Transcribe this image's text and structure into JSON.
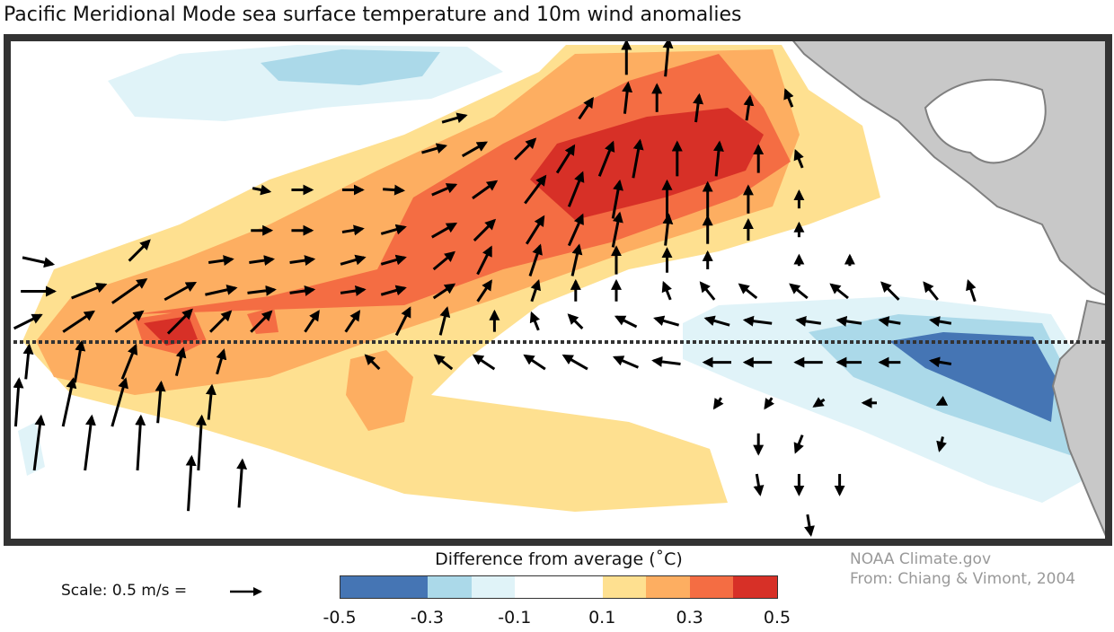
{
  "title": "Pacific Meridional Mode sea surface temperature and 10m wind anomalies",
  "legend": {
    "title": "Difference from average (˚C)",
    "ticks": [
      "-0.5",
      "-0.3",
      "-0.1",
      "0.1",
      "0.3",
      "0.5"
    ],
    "bins": [
      {
        "from": -0.5,
        "to": -0.3,
        "color": "#4575b4"
      },
      {
        "from": -0.3,
        "to": -0.2,
        "color": "#abd9e9"
      },
      {
        "from": -0.2,
        "to": -0.1,
        "color": "#e0f3f8"
      },
      {
        "from": -0.1,
        "to": 0.1,
        "color": "#ffffff"
      },
      {
        "from": 0.1,
        "to": 0.2,
        "color": "#fee090"
      },
      {
        "from": 0.2,
        "to": 0.3,
        "color": "#fdae61"
      },
      {
        "from": 0.3,
        "to": 0.4,
        "color": "#f46d43"
      },
      {
        "from": 0.4,
        "to": 0.5,
        "color": "#d73027"
      }
    ]
  },
  "scale_label": "Scale: 0.5 m/s =",
  "scale_value_ms": 0.5,
  "credit": {
    "line1": "NOAA Climate.gov",
    "line2": "From: Chiang & Vimont, 2004"
  },
  "colors": {
    "land": "#c8c8c8",
    "land_border": "#808080",
    "frame": "#333333"
  },
  "wind_vectors_lon_lat_u_v": [
    [
      236,
      28,
      0,
      0.5
    ],
    [
      240,
      28,
      0.05,
      0.55
    ],
    [
      219,
      22,
      0.35,
      0.1
    ],
    [
      232,
      23,
      0.2,
      0.3
    ],
    [
      236,
      24,
      0.05,
      0.45
    ],
    [
      239,
      24,
      0,
      0.4
    ],
    [
      243,
      23,
      0.05,
      0.4
    ],
    [
      248,
      23,
      0.05,
      0.35
    ],
    [
      252,
      24,
      -0.1,
      0.25
    ],
    [
      217,
      19,
      0.35,
      0.1
    ],
    [
      221,
      19,
      0.35,
      0.2
    ],
    [
      226,
      19,
      0.3,
      0.3
    ],
    [
      230,
      18,
      0.25,
      0.4
    ],
    [
      234,
      18,
      0.2,
      0.5
    ],
    [
      237,
      18,
      0.1,
      0.55
    ],
    [
      241,
      18,
      0,
      0.5
    ],
    [
      245,
      18,
      0.05,
      0.5
    ],
    [
      249,
      18,
      0,
      0.4
    ],
    [
      253,
      18,
      -0.1,
      0.25
    ],
    [
      200,
      15,
      0.25,
      -0.05
    ],
    [
      204,
      15,
      0.3,
      0
    ],
    [
      209,
      15,
      0.3,
      0
    ],
    [
      213,
      15,
      0.3,
      -0.02
    ],
    [
      218,
      15,
      0.35,
      0.15
    ],
    [
      222,
      15,
      0.35,
      0.25
    ],
    [
      227,
      15,
      0.3,
      0.4
    ],
    [
      231,
      15,
      0.2,
      0.5
    ],
    [
      235,
      14,
      0.1,
      0.55
    ],
    [
      240,
      14,
      0,
      0.55
    ],
    [
      244,
      14,
      0,
      0.5
    ],
    [
      248,
      14,
      0,
      0.4
    ],
    [
      253,
      14,
      0,
      0.25
    ],
    [
      200,
      11,
      0.3,
      0
    ],
    [
      204,
      11,
      0.3,
      0
    ],
    [
      209,
      11,
      0.3,
      0.05
    ],
    [
      213,
      11,
      0.35,
      0.1
    ],
    [
      218,
      11,
      0.35,
      0.2
    ],
    [
      222,
      11,
      0.3,
      0.3
    ],
    [
      227,
      11,
      0.25,
      0.4
    ],
    [
      231,
      11,
      0.2,
      0.45
    ],
    [
      235,
      11,
      0.1,
      0.5
    ],
    [
      240,
      11,
      0.05,
      0.45
    ],
    [
      244,
      11,
      0,
      0.4
    ],
    [
      248,
      11,
      0,
      0.3
    ],
    [
      253,
      11,
      0,
      0.2
    ],
    [
      178,
      8,
      0.45,
      -0.1
    ],
    [
      188,
      9,
      0.3,
      0.3
    ],
    [
      196,
      8,
      0.35,
      0.05
    ],
    [
      200,
      8,
      0.35,
      0.05
    ],
    [
      204,
      8,
      0.35,
      0.05
    ],
    [
      209,
      8,
      0.35,
      0.1
    ],
    [
      213,
      8,
      0.35,
      0.1
    ],
    [
      218,
      8,
      0.3,
      0.25
    ],
    [
      222,
      8,
      0.2,
      0.4
    ],
    [
      227,
      8,
      0.15,
      0.45
    ],
    [
      231,
      8,
      0.1,
      0.45
    ],
    [
      235,
      8,
      0,
      0.4
    ],
    [
      240,
      8,
      0,
      0.35
    ],
    [
      244,
      8,
      0,
      0.25
    ],
    [
      253,
      8,
      0,
      0.15
    ],
    [
      258,
      8,
      0,
      0.15
    ],
    [
      178,
      5,
      0.5,
      0
    ],
    [
      183,
      5,
      0.5,
      0.2
    ],
    [
      187,
      5,
      0.5,
      0.35
    ],
    [
      192,
      5,
      0.45,
      0.25
    ],
    [
      196,
      5,
      0.45,
      0.1
    ],
    [
      200,
      5,
      0.4,
      0.05
    ],
    [
      204,
      5,
      0.35,
      0.05
    ],
    [
      209,
      5,
      0.35,
      0.05
    ],
    [
      213,
      5,
      0.35,
      0.1
    ],
    [
      218,
      5,
      0.3,
      0.2
    ],
    [
      222,
      5,
      0.2,
      0.3
    ],
    [
      227,
      5,
      0.1,
      0.3
    ],
    [
      231,
      5,
      0,
      0.3
    ],
    [
      235,
      5,
      0,
      0.3
    ],
    [
      240,
      5,
      -0.1,
      0.25
    ],
    [
      244,
      5,
      -0.2,
      0.25
    ],
    [
      248,
      5,
      -0.25,
      0.2
    ],
    [
      253,
      5,
      -0.25,
      0.2
    ],
    [
      257,
      5,
      -0.25,
      0.2
    ],
    [
      262,
      5,
      -0.25,
      0.25
    ],
    [
      266,
      5,
      -0.2,
      0.25
    ],
    [
      270,
      5,
      -0.1,
      0.3
    ],
    [
      177,
      2,
      0.4,
      0.2
    ],
    [
      182,
      2,
      0.45,
      0.3
    ],
    [
      187,
      2,
      0.4,
      0.3
    ],
    [
      192,
      2,
      0.35,
      0.35
    ],
    [
      196,
      2,
      0.3,
      0.3
    ],
    [
      200,
      2,
      0.3,
      0.3
    ],
    [
      205,
      2,
      0.2,
      0.3
    ],
    [
      209,
      2,
      0.2,
      0.3
    ],
    [
      214,
      2,
      0.2,
      0.4
    ],
    [
      218,
      2,
      0.1,
      0.4
    ],
    [
      223,
      2,
      0,
      0.3
    ],
    [
      227,
      2,
      -0.1,
      0.25
    ],
    [
      231,
      2,
      -0.2,
      0.2
    ],
    [
      236,
      2,
      -0.3,
      0.15
    ],
    [
      240,
      2,
      -0.35,
      0.1
    ],
    [
      245,
      2,
      -0.35,
      0.1
    ],
    [
      249,
      2,
      -0.4,
      0.05
    ],
    [
      254,
      2,
      -0.35,
      0.05
    ],
    [
      258,
      2,
      -0.35,
      0.05
    ],
    [
      262,
      2,
      -0.3,
      0.05
    ],
    [
      267,
      2,
      -0.3,
      0.05
    ],
    [
      177,
      -2,
      0.05,
      0.5
    ],
    [
      182,
      -2,
      0.1,
      0.6
    ],
    [
      187,
      -2,
      0.2,
      0.5
    ],
    [
      192,
      -2,
      0.1,
      0.4
    ],
    [
      196,
      -2,
      0.1,
      0.35
    ],
    [
      211,
      -2,
      -0.2,
      0.2
    ],
    [
      218,
      -2,
      -0.25,
      0.2
    ],
    [
      222,
      -2,
      -0.3,
      0.2
    ],
    [
      227,
      -2,
      -0.3,
      0.2
    ],
    [
      231,
      -2,
      -0.35,
      0.2
    ],
    [
      236,
      -2,
      -0.35,
      0.15
    ],
    [
      240,
      -2,
      -0.4,
      0.05
    ],
    [
      245,
      -2,
      -0.4,
      0
    ],
    [
      249,
      -2,
      -0.4,
      0
    ],
    [
      254,
      -2,
      -0.4,
      0
    ],
    [
      258,
      -2,
      -0.35,
      0
    ],
    [
      262,
      -2,
      -0.3,
      0
    ],
    [
      267,
      -2,
      -0.3,
      0.05
    ],
    [
      176,
      -6,
      0.05,
      0.7
    ],
    [
      181,
      -6,
      0.15,
      0.7
    ],
    [
      186,
      -6,
      0.2,
      0.7
    ],
    [
      190,
      -6,
      0.05,
      0.6
    ],
    [
      195,
      -6,
      0.05,
      0.5
    ],
    [
      245,
      -6,
      -0.1,
      -0.15
    ],
    [
      250,
      -6,
      -0.1,
      -0.15
    ],
    [
      255,
      -6,
      -0.15,
      -0.1
    ],
    [
      260,
      -6,
      -0.2,
      0
    ],
    [
      267,
      -6,
      -0.1,
      -0.05
    ],
    [
      178,
      -10,
      0.1,
      0.8
    ],
    [
      183,
      -10,
      0.1,
      0.8
    ],
    [
      188,
      -10,
      0.05,
      0.8
    ],
    [
      194,
      -10,
      0.05,
      0.8
    ],
    [
      249,
      -10,
      0,
      -0.3
    ],
    [
      253,
      -10,
      -0.1,
      -0.25
    ],
    [
      267,
      -10,
      -0.05,
      -0.2
    ],
    [
      193,
      -14,
      0.05,
      0.8
    ],
    [
      198,
      -14,
      0.05,
      0.7
    ],
    [
      249,
      -14,
      0.05,
      -0.3
    ],
    [
      253,
      -14,
      0,
      -0.3
    ],
    [
      257,
      -14,
      0,
      -0.3
    ],
    [
      254,
      -18,
      0.05,
      -0.3
    ]
  ]
}
